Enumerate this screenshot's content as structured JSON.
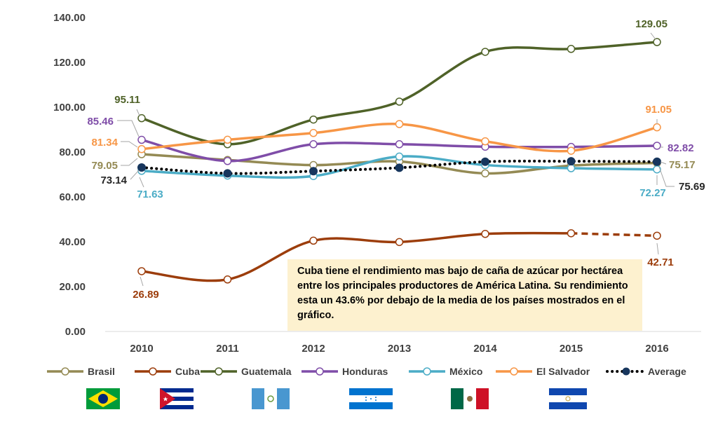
{
  "chart_data": {
    "type": "line",
    "title": "",
    "xlabel": "",
    "ylabel": "",
    "ylim": [
      0,
      140
    ],
    "y_ticks": [
      "0.00",
      "20.00",
      "40.00",
      "60.00",
      "80.00",
      "100.00",
      "120.00",
      "140.00"
    ],
    "x": [
      "2010",
      "2011",
      "2012",
      "2013",
      "2014",
      "2015",
      "2016"
    ],
    "grid": false,
    "legend_position": "bottom",
    "series": [
      {
        "name": "Brasil",
        "color": "#948a54",
        "values": [
          79.05,
          76.5,
          74.2,
          75.8,
          70.5,
          74.0,
          75.17
        ],
        "labels": {
          "0": "79.05",
          "6": "75.17"
        }
      },
      {
        "name": "Cuba",
        "color": "#9c3d0b",
        "values": [
          26.89,
          23.2,
          40.5,
          39.9,
          43.5,
          43.8,
          42.71
        ],
        "dashed_from_index": 5,
        "labels": {
          "0": "26.89",
          "6": "42.71"
        }
      },
      {
        "name": "Guatemala",
        "color": "#4f6228",
        "values": [
          95.11,
          83.5,
          94.5,
          102.5,
          124.7,
          126.0,
          129.05
        ],
        "labels": {
          "0": "95.11",
          "6": "129.05"
        }
      },
      {
        "name": "Honduras",
        "color": "#7f4da8",
        "values": [
          85.46,
          76.0,
          83.5,
          83.5,
          82.4,
          82.3,
          82.82
        ],
        "labels": {
          "0": "85.46",
          "6": "82.82"
        }
      },
      {
        "name": "México",
        "color": "#4bacc6",
        "values": [
          71.63,
          69.5,
          69.3,
          78.0,
          74.2,
          72.8,
          72.27
        ],
        "labels": {
          "0": "71.63",
          "6": "72.27"
        }
      },
      {
        "name": "El Salvador",
        "color": "#f79646",
        "values": [
          81.34,
          85.5,
          88.5,
          92.5,
          84.8,
          80.6,
          91.05
        ],
        "labels": {
          "0": "81.34",
          "6": "91.05"
        }
      },
      {
        "name": "Average",
        "color": "#17365d",
        "values": [
          73.14,
          70.5,
          71.5,
          73.0,
          75.7,
          75.9,
          75.69
        ],
        "dotted": true,
        "labels": {
          "0": "73.14",
          "6": "75.69"
        }
      }
    ],
    "annotation": "Cuba tiene el rendimiento mas bajo de caña de azúcar por hectárea entre los principales productores de América Latina. Su rendimiento esta un 43.6% por debajo de la media de los países mostrados en el gráfico."
  },
  "flags": [
    "brazil-flag",
    "cuba-flag",
    "guatemala-flag",
    "honduras-flag",
    "mexico-flag",
    "el-salvador-flag"
  ]
}
